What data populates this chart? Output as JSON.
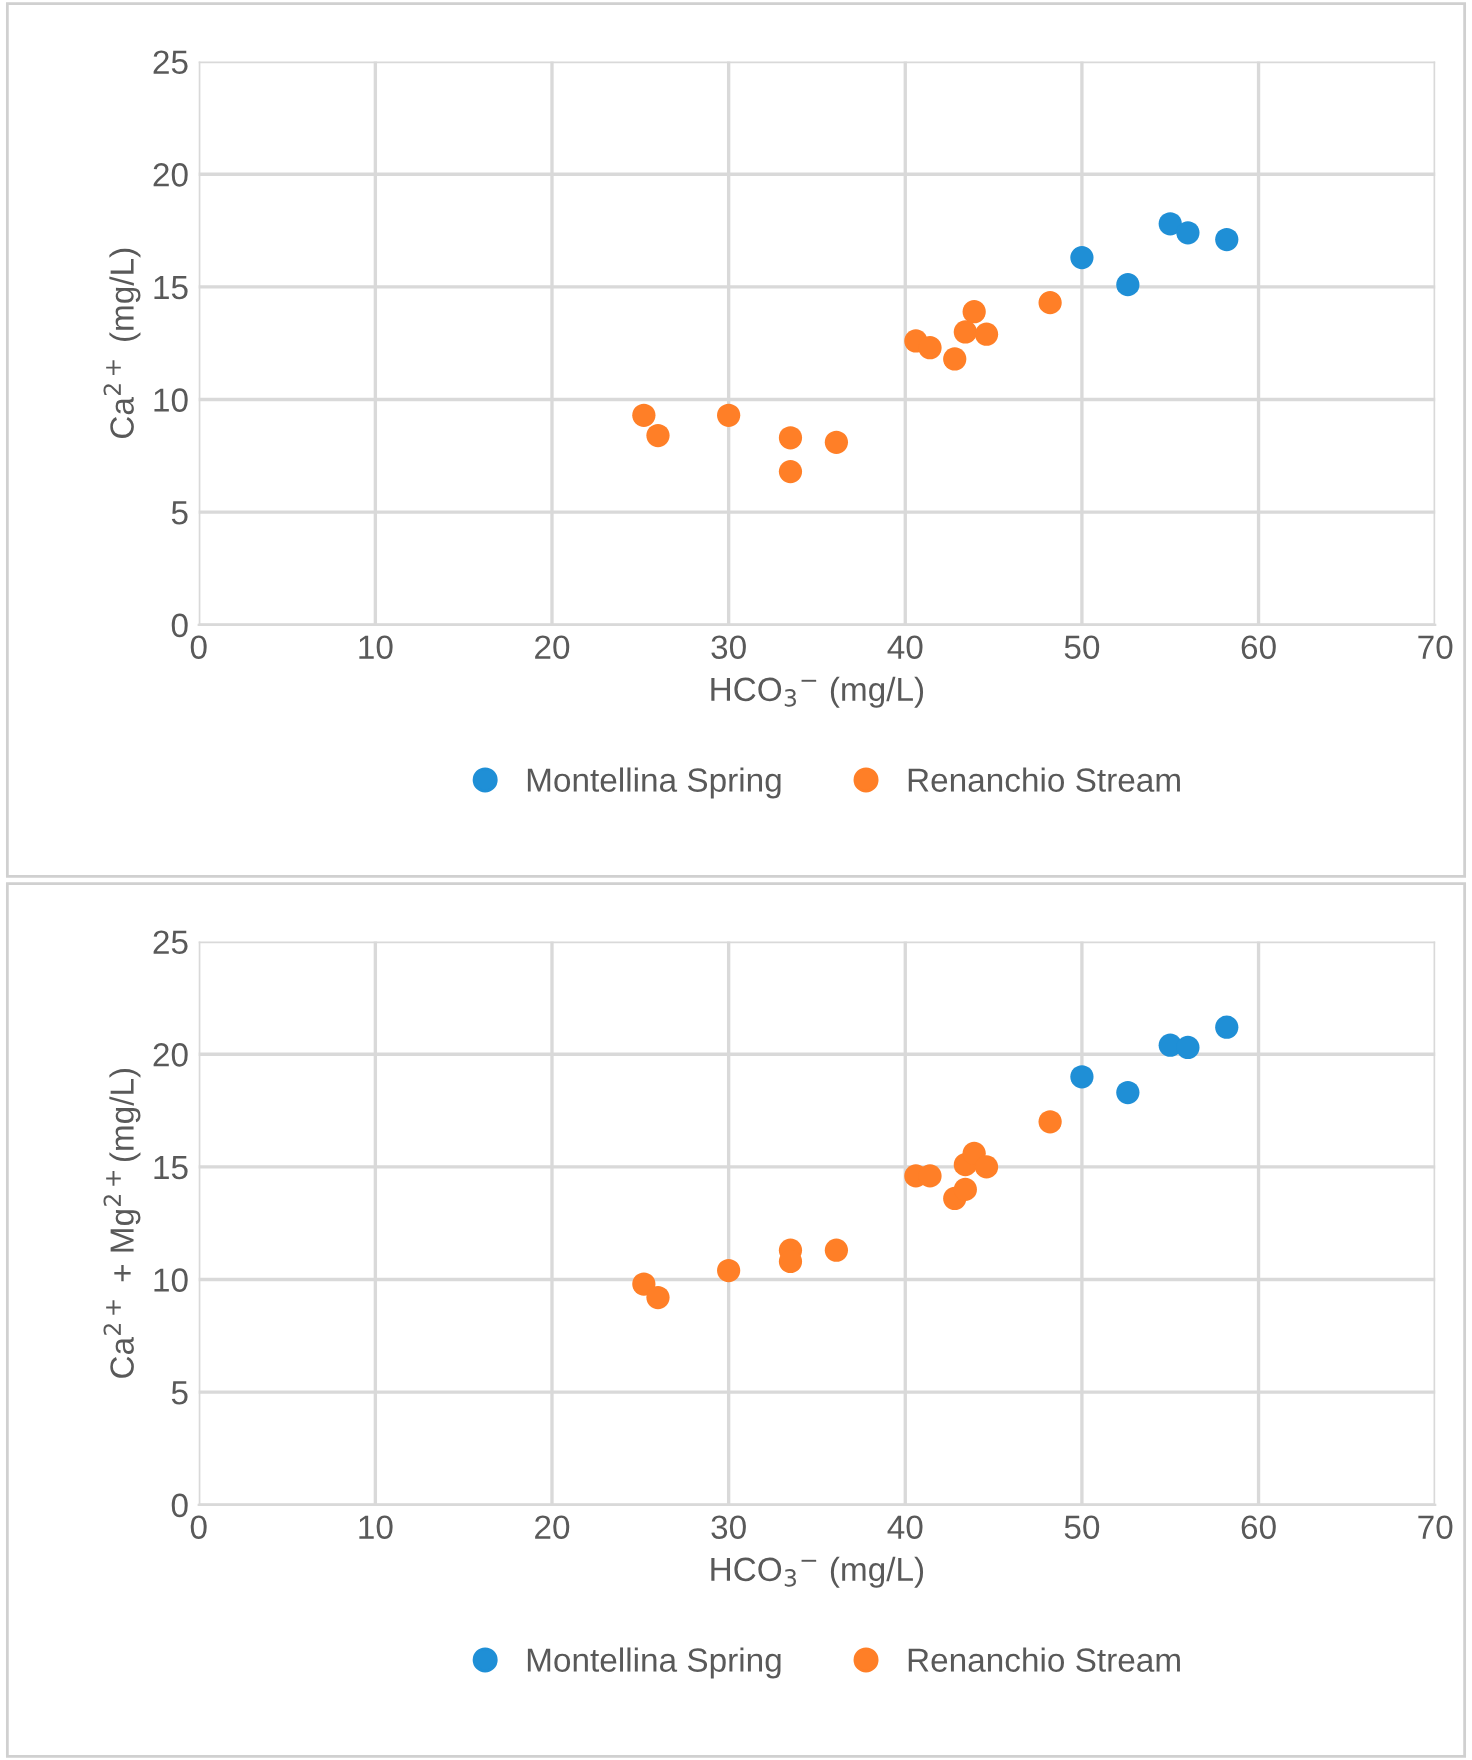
{
  "chart_data": [
    {
      "type": "scatter",
      "xlabel": "HCO$_{3}$$^{−}$ (mg/L)",
      "ylabel": "Ca$^{2+}$ (mg/L)",
      "xlim": [
        0,
        70
      ],
      "ylim": [
        0,
        25
      ],
      "xticks": [
        0,
        10,
        20,
        30,
        40,
        50,
        60,
        70
      ],
      "yticks": [
        0,
        5,
        10,
        15,
        20,
        25
      ],
      "grid": true,
      "legend": "bottom",
      "marker": "circle",
      "series": [
        {
          "name": "Montellina Spring",
          "color": "#1f8fd6",
          "x": [
            50,
            52.6,
            55,
            56,
            58.2
          ],
          "values": [
            16.3,
            15.1,
            17.8,
            17.4,
            17.1
          ]
        },
        {
          "name": "Renanchio Stream",
          "color": "#ff7f27",
          "x": [
            25.2,
            26,
            30,
            33.5,
            33.5,
            36.1,
            40.6,
            41.4,
            42.8,
            43.4,
            43.9,
            44.6,
            48.2
          ],
          "values": [
            9.3,
            8.4,
            9.3,
            8.3,
            6.8,
            8.1,
            12.6,
            12.3,
            11.8,
            13.0,
            13.9,
            12.9,
            14.3
          ]
        }
      ]
    },
    {
      "type": "scatter",
      "xlabel": "HCO$_{3}$$^{−}$ (mg/L)",
      "ylabel": "Ca$^{2+}$ + Mg$^{2+}$(mg/L)",
      "xlim": [
        0,
        70
      ],
      "ylim": [
        0,
        25
      ],
      "xticks": [
        0,
        10,
        20,
        30,
        40,
        50,
        60,
        70
      ],
      "yticks": [
        0,
        5,
        10,
        15,
        20,
        25
      ],
      "grid": true,
      "legend": "bottom",
      "marker": "circle",
      "series": [
        {
          "name": "Montellina Spring",
          "color": "#1f8fd6",
          "x": [
            50,
            52.6,
            55,
            56,
            58.2
          ],
          "values": [
            19.0,
            18.3,
            20.4,
            20.3,
            21.2
          ]
        },
        {
          "name": "Renanchio Stream",
          "color": "#ff7f27",
          "x": [
            25.2,
            26,
            30,
            33.5,
            33.5,
            36.1,
            40.6,
            41.4,
            42.8,
            43.4,
            43.4,
            43.9,
            44.6,
            48.2
          ],
          "values": [
            9.8,
            9.2,
            10.4,
            11.3,
            10.8,
            11.3,
            14.6,
            14.6,
            13.6,
            14.0,
            15.1,
            15.6,
            15.0,
            17.0
          ]
        }
      ]
    }
  ]
}
